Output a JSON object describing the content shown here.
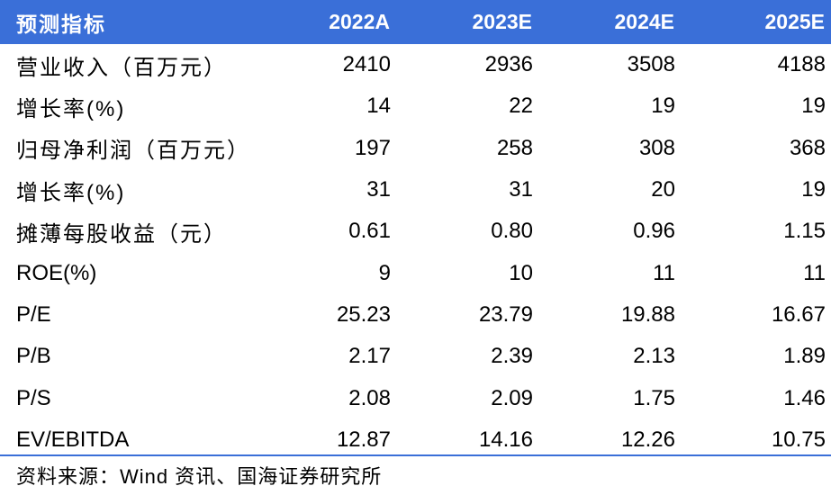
{
  "header": {
    "label": "预测指标",
    "years": [
      "2022A",
      "2023E",
      "2024E",
      "2025E"
    ]
  },
  "rows": [
    {
      "label": "营业收入（百万元）",
      "values": [
        "2410",
        "2936",
        "3508",
        "4188"
      ]
    },
    {
      "label": "增长率(%)",
      "values": [
        "14",
        "22",
        "19",
        "19"
      ]
    },
    {
      "label": "归母净利润（百万元）",
      "values": [
        "197",
        "258",
        "308",
        "368"
      ]
    },
    {
      "label": "增长率(%)",
      "values": [
        "31",
        "31",
        "20",
        "19"
      ]
    },
    {
      "label": "摊薄每股收益（元）",
      "values": [
        "0.61",
        "0.80",
        "0.96",
        "1.15"
      ]
    },
    {
      "label": "ROE(%)",
      "values": [
        "9",
        "10",
        "11",
        "11"
      ]
    },
    {
      "label": "P/E",
      "values": [
        "25.23",
        "23.79",
        "19.88",
        "16.67"
      ]
    },
    {
      "label": "P/B",
      "values": [
        "2.17",
        "2.39",
        "2.13",
        "1.89"
      ]
    },
    {
      "label": "P/S",
      "values": [
        "2.08",
        "2.09",
        "1.75",
        "1.46"
      ]
    },
    {
      "label": "EV/EBITDA",
      "values": [
        "12.87",
        "14.16",
        "12.26",
        "10.75"
      ]
    }
  ],
  "source": "资料来源：Wind 资讯、国海证券研究所",
  "colors": {
    "header_bg": "#3a6fd8",
    "header_text": "#ffffff"
  }
}
